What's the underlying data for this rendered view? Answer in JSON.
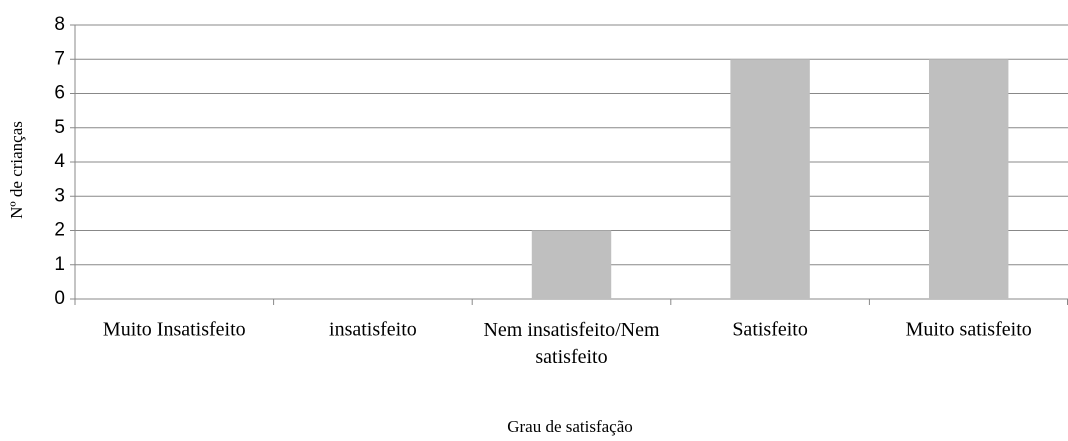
{
  "chart_data": {
    "type": "bar",
    "categories": [
      "Muito Insatisfeito",
      "insatisfeito",
      "Nem insatisfeito/Nem satisfeito",
      "Satisfeito",
      "Muito satisfeito"
    ],
    "values": [
      0,
      0,
      2,
      7,
      7
    ],
    "color": "#bfbfbf",
    "ylim": [
      0,
      8
    ],
    "yticks": [
      0,
      1,
      2,
      3,
      4,
      5,
      6,
      7,
      8
    ],
    "grid": true,
    "xlabel": "Grau de satisfação",
    "ylabel": "Nº de crianças"
  }
}
